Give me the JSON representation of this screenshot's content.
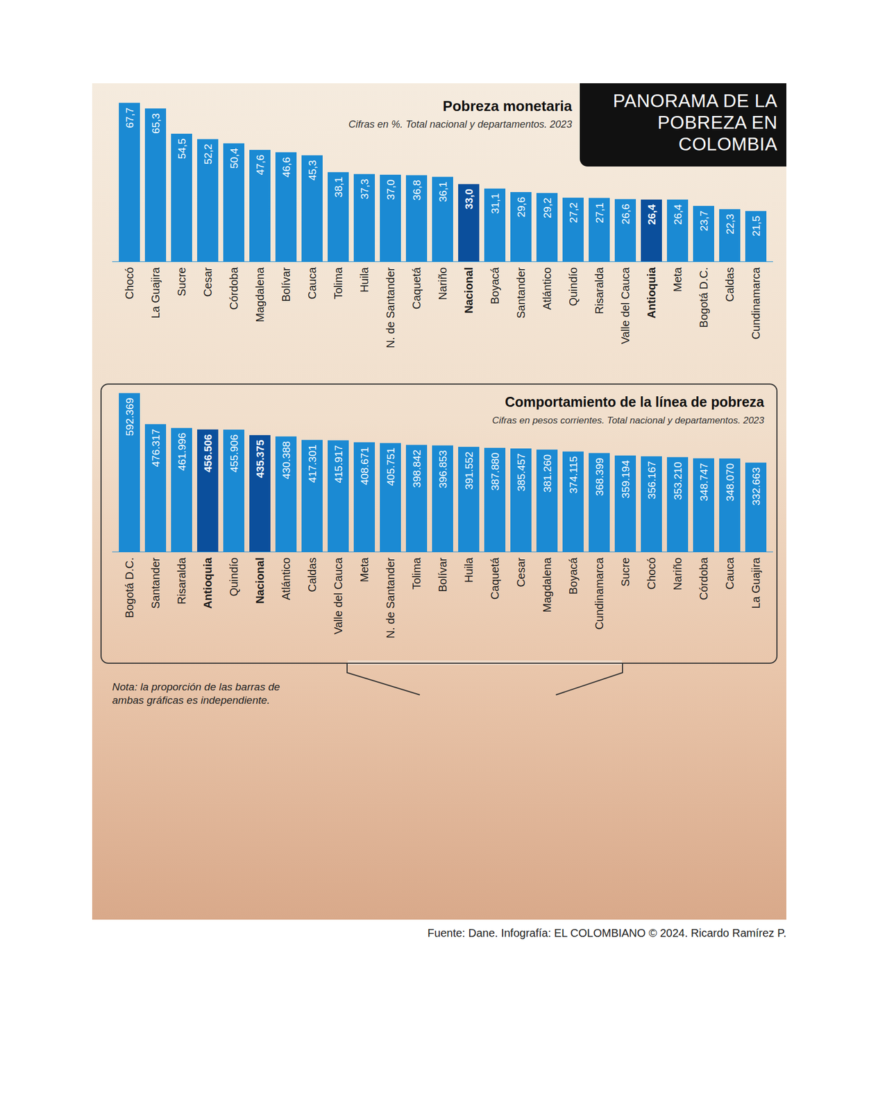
{
  "header": "PANORAMA DE LA POBREZA EN COLOMBIA",
  "chart_data": [
    {
      "type": "bar",
      "title": "Pobreza monetaria",
      "subtitle": "Cifras en %. Total nacional y departamentos. 2023",
      "categories": [
        "Chocó",
        "La Guajira",
        "Sucre",
        "Cesar",
        "Córdoba",
        "Magdalena",
        "Bolívar",
        "Cauca",
        "Tolima",
        "Huila",
        "N. de Santander",
        "Caquetá",
        "Nariño",
        "Nacional",
        "Boyacá",
        "Santander",
        "Atlántico",
        "Quindío",
        "Risaralda",
        "Valle del Cauca",
        "Antioquia",
        "Meta",
        "Bogotá D.C.",
        "Caldas",
        "Cundinamarca"
      ],
      "values": [
        67.7,
        65.3,
        54.5,
        52.2,
        50.4,
        47.6,
        46.6,
        45.3,
        38.1,
        37.3,
        37.0,
        36.8,
        36.1,
        33.0,
        31.1,
        29.6,
        29.2,
        27.2,
        27.1,
        26.6,
        26.4,
        26.4,
        23.7,
        22.3,
        21.5
      ],
      "value_labels": [
        "67,7",
        "65,3",
        "54,5",
        "52,2",
        "50,4",
        "47,6",
        "46,6",
        "45,3",
        "38,1",
        "37,3",
        "37,0",
        "36,8",
        "36,1",
        "33,0",
        "31,1",
        "29,6",
        "29,2",
        "27,2",
        "27,1",
        "26,6",
        "26,4",
        "26,4",
        "23,7",
        "22,3",
        "21,5"
      ],
      "color": "#1b8ad3",
      "colors": [
        "#1b8ad3",
        "#1b8ad3",
        "#1b8ad3",
        "#1b8ad3",
        "#1b8ad3",
        "#1b8ad3",
        "#1b8ad3",
        "#1b8ad3",
        "#1b8ad3",
        "#1b8ad3",
        "#1b8ad3",
        "#1b8ad3",
        "#1b8ad3",
        "#0b4f9c",
        "#1b8ad3",
        "#1b8ad3",
        "#1b8ad3",
        "#1b8ad3",
        "#1b8ad3",
        "#1b8ad3",
        "#0b4f9c",
        "#1b8ad3",
        "#1b8ad3",
        "#1b8ad3",
        "#1b8ad3"
      ],
      "ylim": [
        0,
        68
      ],
      "data_labels": true,
      "tick_labels": "x",
      "grid": false
    },
    {
      "type": "bar",
      "title": "Comportamiento de la línea de pobreza",
      "subtitle": "Cifras en pesos corrientes. Total nacional y departamentos. 2023",
      "categories": [
        "Bogotá D.C.",
        "Santander",
        "Risaralda",
        "Antioquia",
        "Quindío",
        "Nacional",
        "Atlántico",
        "Caldas",
        "Valle del Cauca",
        "Meta",
        "N. de Santander",
        "Tolima",
        "Bolívar",
        "Huila",
        "Caquetá",
        "Cesar",
        "Magdalena",
        "Boyacá",
        "Cundinamarca",
        "Sucre",
        "Chocó",
        "Nariño",
        "Córdoba",
        "Cauca",
        "La Guajira"
      ],
      "values": [
        592369,
        476317,
        461996,
        456506,
        455906,
        435375,
        430388,
        417301,
        415917,
        408671,
        405751,
        398842,
        396853,
        391552,
        387880,
        385457,
        381260,
        374115,
        368399,
        359194,
        356167,
        353210,
        348747,
        348070,
        332663
      ],
      "value_labels": [
        "592.369",
        "476.317",
        "461.996",
        "456.506",
        "455.906",
        "435.375",
        "430.388",
        "417.301",
        "415.917",
        "408.671",
        "405.751",
        "398.842",
        "396.853",
        "391.552",
        "387.880",
        "385.457",
        "381.260",
        "374.115",
        "368.399",
        "359.194",
        "356.167",
        "353.210",
        "348.747",
        "348.070",
        "332.663"
      ],
      "color": "#1b8ad3",
      "colors": [
        "#1b8ad3",
        "#1b8ad3",
        "#1b8ad3",
        "#0b4f9c",
        "#1b8ad3",
        "#0b4f9c",
        "#1b8ad3",
        "#1b8ad3",
        "#1b8ad3",
        "#1b8ad3",
        "#1b8ad3",
        "#1b8ad3",
        "#1b8ad3",
        "#1b8ad3",
        "#1b8ad3",
        "#1b8ad3",
        "#1b8ad3",
        "#1b8ad3",
        "#1b8ad3",
        "#1b8ad3",
        "#1b8ad3",
        "#1b8ad3",
        "#1b8ad3",
        "#1b8ad3",
        "#1b8ad3"
      ],
      "ylim": [
        0,
        595000
      ],
      "data_labels": true,
      "tick_labels": "x",
      "grid": false
    }
  ],
  "note": "Nota: la proporción de las barras de ambas gráficas es independiente.",
  "source": "Fuente: Dane. Infografía: EL COLOMBIANO © 2024. Ricardo Ramírez P."
}
